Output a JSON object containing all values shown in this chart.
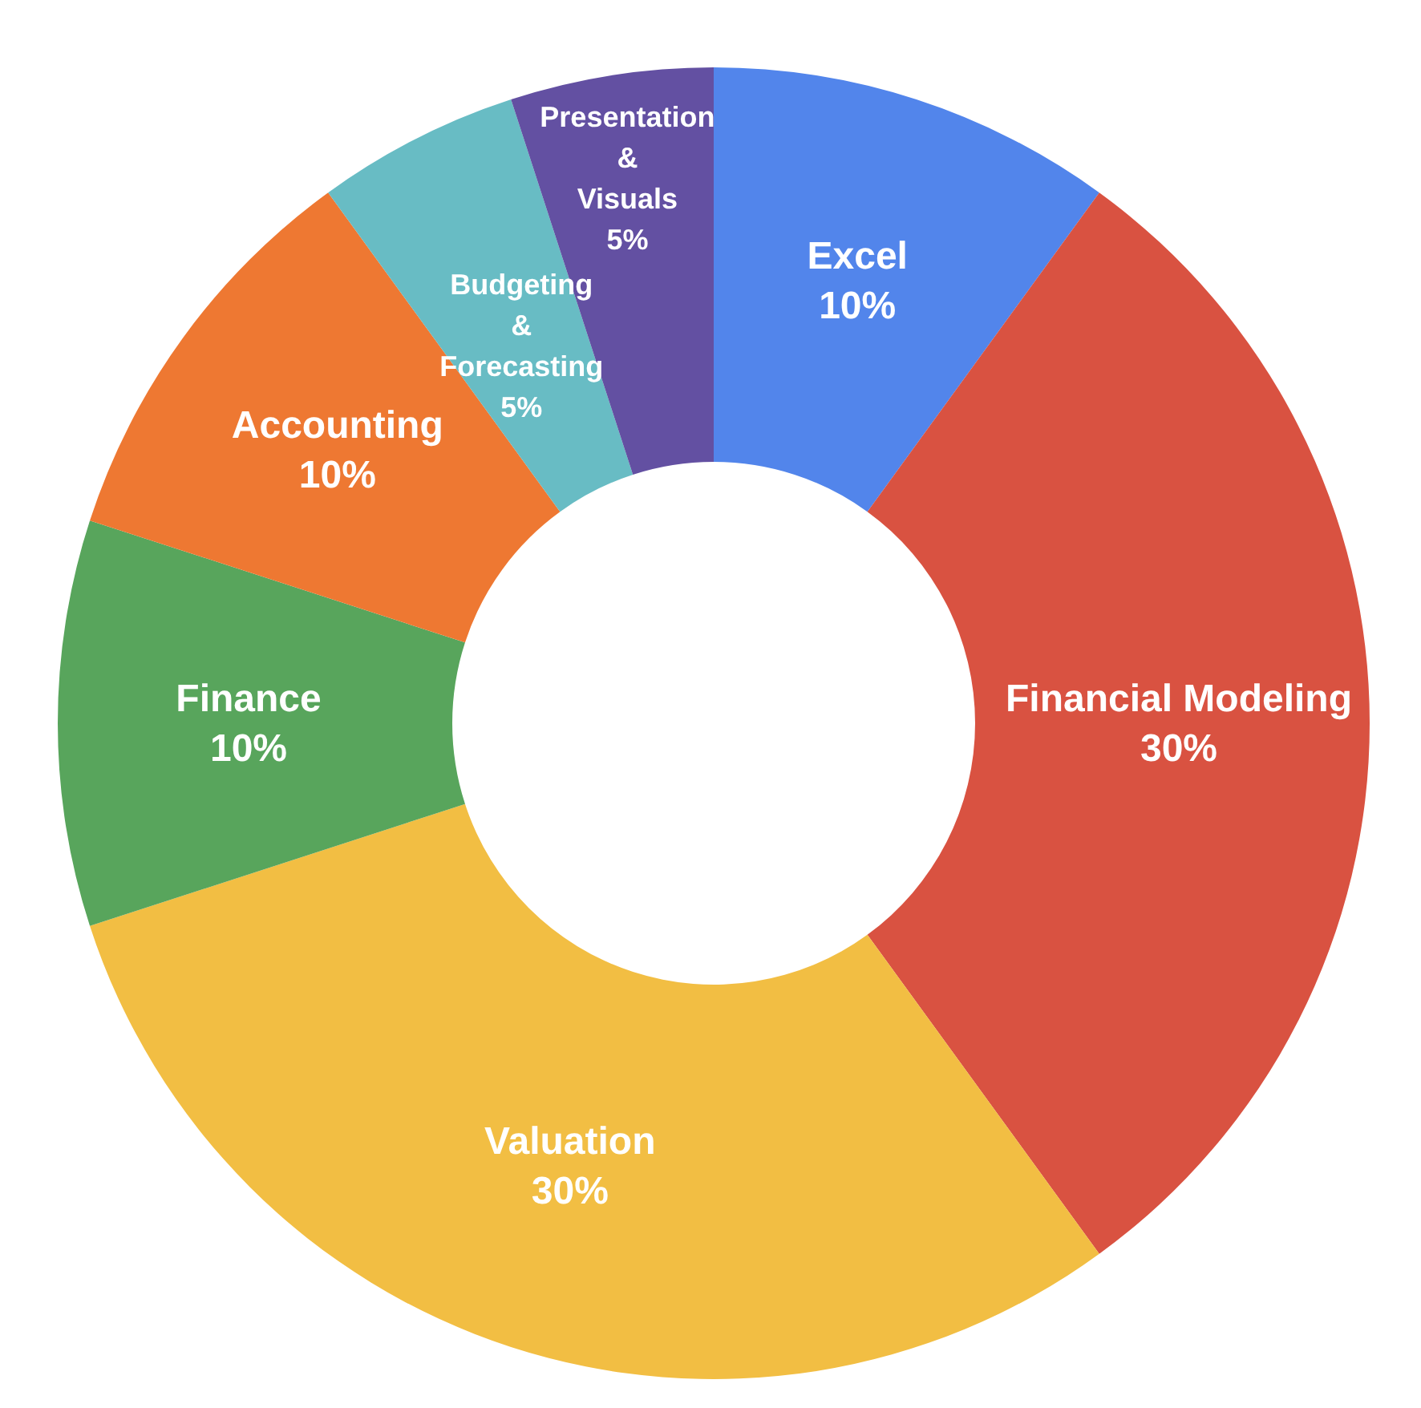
{
  "chart_data": {
    "type": "donut",
    "categories": [
      "Excel",
      "Financial Modeling",
      "Valuation",
      "Finance",
      "Accounting",
      "Budgeting & Forecasting",
      "Presentation & Visuals"
    ],
    "values": [
      10,
      30,
      30,
      10,
      10,
      5,
      5
    ],
    "colors": [
      "#5285eb",
      "#d95241",
      "#f2be43",
      "#58a55c",
      "#ee7832",
      "#68bcc4",
      "#6350a2"
    ],
    "value_labels": [
      "10%",
      "30%",
      "30%",
      "10%",
      "10%",
      "5%",
      "5%"
    ]
  }
}
